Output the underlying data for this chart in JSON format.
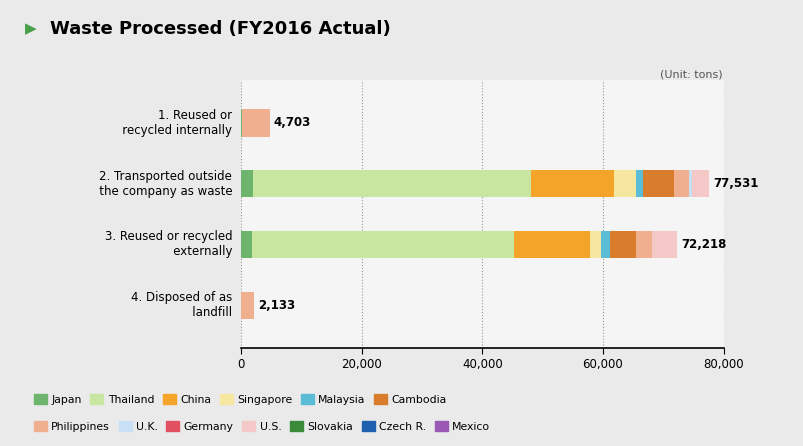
{
  "title": "Waste Processed (FY2016 Actual)",
  "unit_label": "(Unit: tons)",
  "bg_color": "#eaeaea",
  "panel_color": "#f5f5f5",
  "categories": [
    "1. Reused or\n   recycled internally",
    "2. Transported outside\n   the company as waste",
    "3. Reused or recycled\n   externally",
    "4. Disposed of as\n   landfill"
  ],
  "totals_str": [
    "4,703",
    "77,531",
    "72,218",
    "2,133"
  ],
  "totals_val": [
    4703,
    77531,
    72218,
    2133
  ],
  "xlim_max": 80000,
  "xticks": [
    0,
    20000,
    40000,
    60000,
    80000
  ],
  "xtick_labels": [
    "0",
    "20,000",
    "40,000",
    "60,000",
    "80,000"
  ],
  "legend_rows": [
    [
      "Japan",
      "Thailand",
      "China",
      "Singapore",
      "Malaysia",
      "Cambodia"
    ],
    [
      "Philippines",
      "U.K.",
      "Germany",
      "U.S.",
      "Slovakia",
      "Czech R.",
      "Mexico"
    ]
  ],
  "colors": {
    "Japan": "#6db56d",
    "Thailand": "#c8e6a0",
    "China": "#f5a42a",
    "Singapore": "#f5e6a0",
    "Malaysia": "#5bbcd6",
    "Cambodia": "#d97c2b",
    "Philippines": "#f0b090",
    "U.K.": "#c8e0f5",
    "Germany": "#e05060",
    "U.S.": "#f5c8c8",
    "Slovakia": "#3a8a3a",
    "Czech R.": "#2060b0",
    "Mexico": "#9b59b6"
  },
  "segments": [
    [
      [
        "Japan",
        200
      ],
      [
        "Philippines",
        4503
      ]
    ],
    [
      [
        "Japan",
        1900
      ],
      [
        "Thailand",
        46200
      ],
      [
        "China",
        13800
      ],
      [
        "Singapore",
        3500
      ],
      [
        "Malaysia",
        1200
      ],
      [
        "Cambodia",
        5200
      ],
      [
        "Philippines",
        2500
      ],
      [
        "U.K.",
        500
      ],
      [
        "U.S.",
        2731
      ]
    ],
    [
      [
        "Japan",
        1800
      ],
      [
        "Thailand",
        43500
      ],
      [
        "China",
        12500
      ],
      [
        "Singapore",
        1800
      ],
      [
        "Malaysia",
        1500
      ],
      [
        "Cambodia",
        4300
      ],
      [
        "Philippines",
        2800
      ],
      [
        "U.S.",
        4018
      ]
    ],
    [
      [
        "Philippines",
        2133
      ]
    ]
  ]
}
